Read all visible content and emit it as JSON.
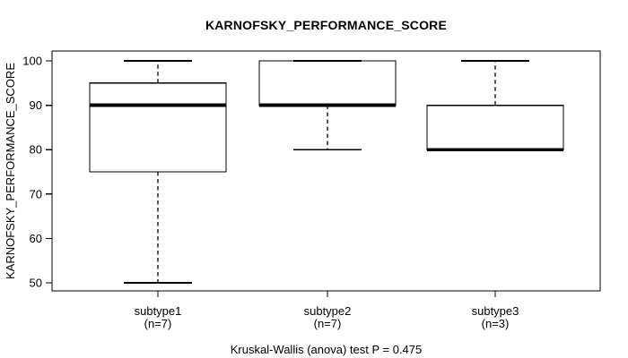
{
  "chart_data": {
    "type": "box",
    "title": "KARNOFSKY_PERFORMANCE_SCORE",
    "ylabel": "KARNOFSKY_PERFORMANCE_SCORE",
    "xlabel": "",
    "annotation": "Kruskal-Wallis (anova) test P = 0.475",
    "ylim": [
      50,
      100
    ],
    "y_ticks": [
      50,
      60,
      70,
      80,
      90,
      100
    ],
    "grid": false,
    "legend": "none",
    "groups": [
      {
        "label": "subtype1",
        "sublabel": "(n=7)",
        "whisker_low": 50,
        "q1": 75,
        "median": 90,
        "q3": 95,
        "whisker_high": 100,
        "outliers": []
      },
      {
        "label": "subtype2",
        "sublabel": "(n=7)",
        "whisker_low": 80,
        "q1": 90,
        "median": 90,
        "q3": 100,
        "whisker_high": 100,
        "outliers": []
      },
      {
        "label": "subtype3",
        "sublabel": "(n=3)",
        "whisker_low": 80,
        "q1": 80,
        "median": 80,
        "q3": 90,
        "whisker_high": 100,
        "outliers": []
      }
    ],
    "colors": {
      "line": "#000000",
      "box_fill": "#ffffff",
      "background": "#ffffff"
    }
  }
}
